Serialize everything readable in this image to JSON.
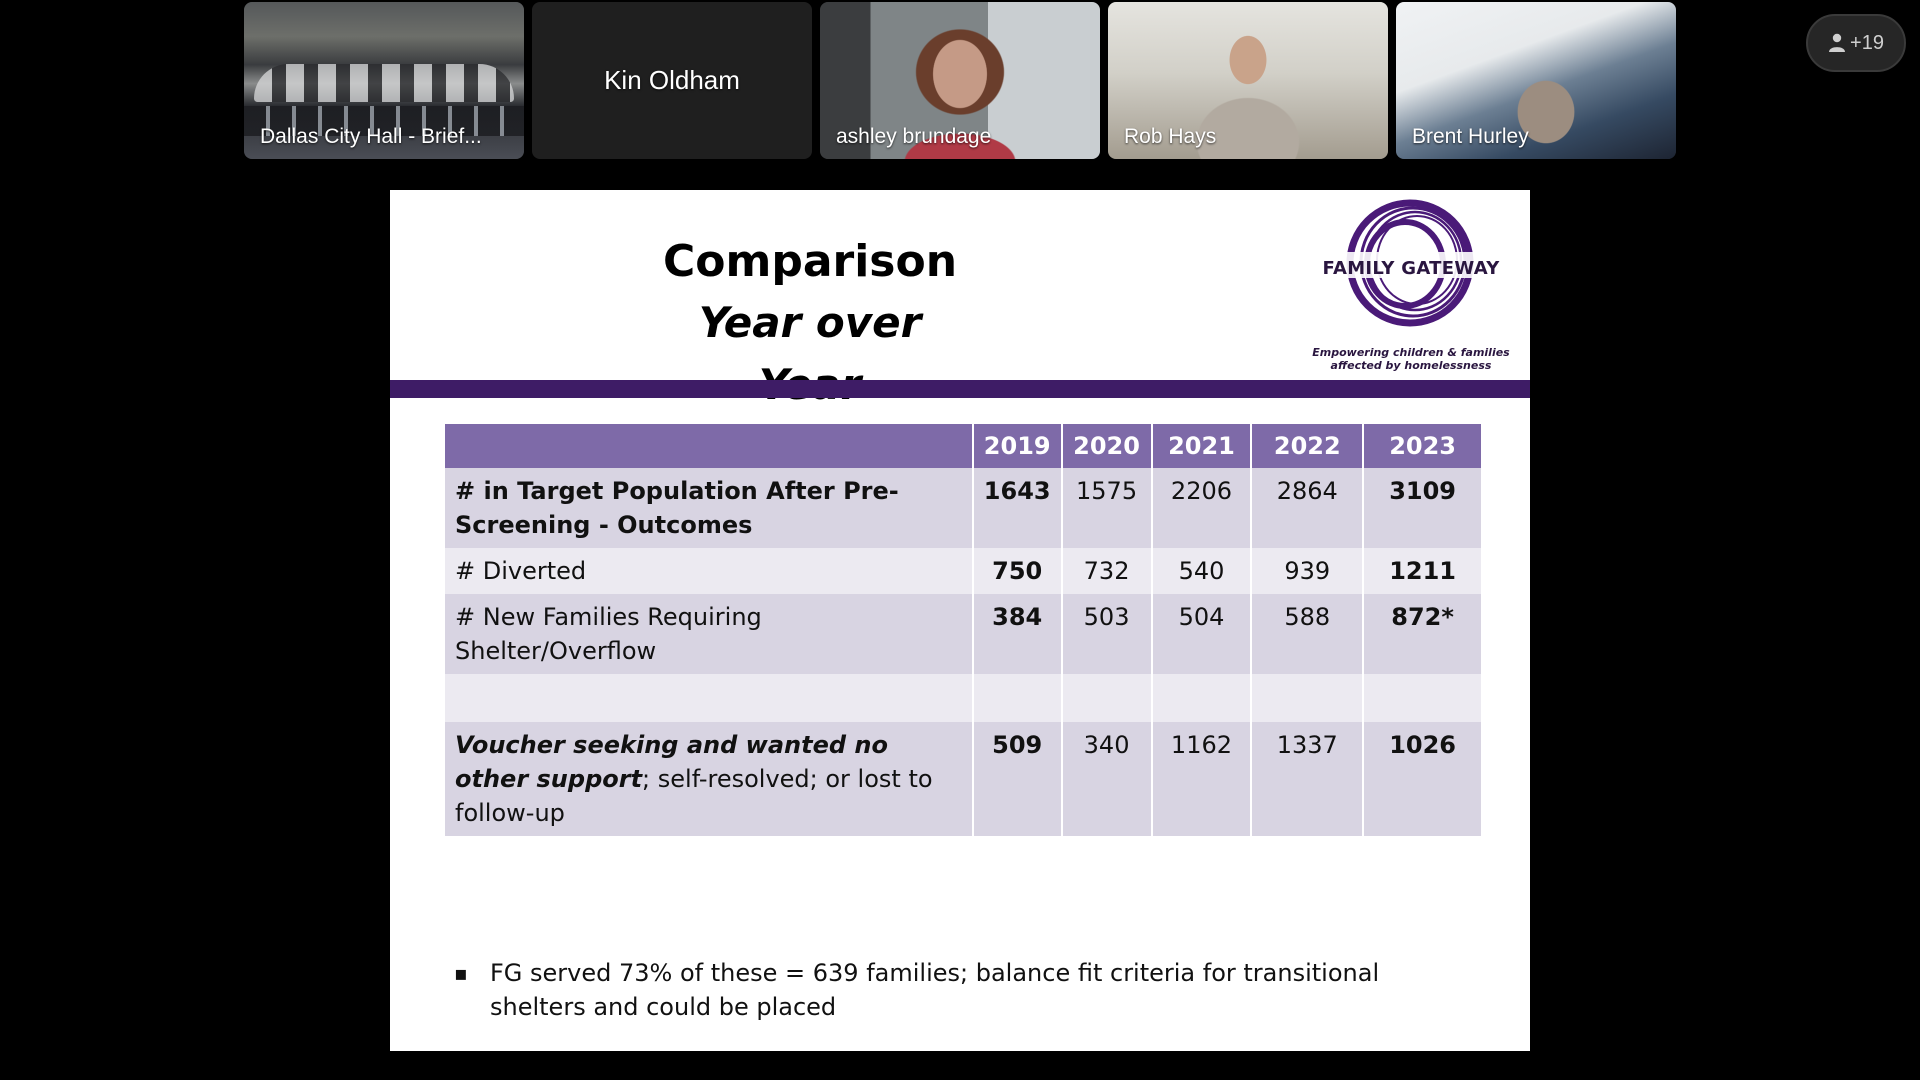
{
  "meeting": {
    "participants": [
      {
        "name": "Dallas City Hall - Brief..."
      },
      {
        "name": "Kin Oldham"
      },
      {
        "name": "ashley brundage"
      },
      {
        "name": "Rob Hays"
      },
      {
        "name": "Brent Hurley"
      }
    ],
    "more_participants_label": "+19",
    "more_participants_icon": "person-icon"
  },
  "slide": {
    "title_line1": "Comparison",
    "title_line2": "Year over Year",
    "logo": {
      "name": "FAMILY GATEWAY",
      "tagline_line1": "Empowering children & families",
      "tagline_line2": "affected by homelessness",
      "color": "#4a1a78"
    },
    "accent_color": "#3e1c66",
    "header_color": "#7e6aa8",
    "table": {
      "headers": [
        "",
        "2019",
        "2020",
        "2021",
        "2022",
        "2023"
      ],
      "rows": [
        {
          "label_bold": "# in Target Population After Pre-Screening - Outcomes",
          "values": [
            "1643",
            "1575",
            "2206",
            "2864",
            "3109"
          ]
        },
        {
          "label": "# Diverted",
          "values": [
            "750",
            "732",
            "540",
            "939",
            "1211"
          ]
        },
        {
          "label": "# New Families Requiring Shelter/Overflow",
          "values": [
            "384",
            "503",
            "504",
            "588",
            "872*"
          ]
        },
        {
          "label": "",
          "values": [
            "",
            "",
            "",
            "",
            ""
          ]
        },
        {
          "label_bold_italic": "Voucher seeking and wanted no other support",
          "label_rest": "; self-resolved; or lost to follow-up",
          "values": [
            "509",
            "340",
            "1162",
            "1337",
            "1026"
          ]
        }
      ]
    },
    "footnote_bullet": "▪",
    "footnote": "FG served 73% of these = 639 families; balance fit criteria for transitional shelters and could be placed"
  }
}
